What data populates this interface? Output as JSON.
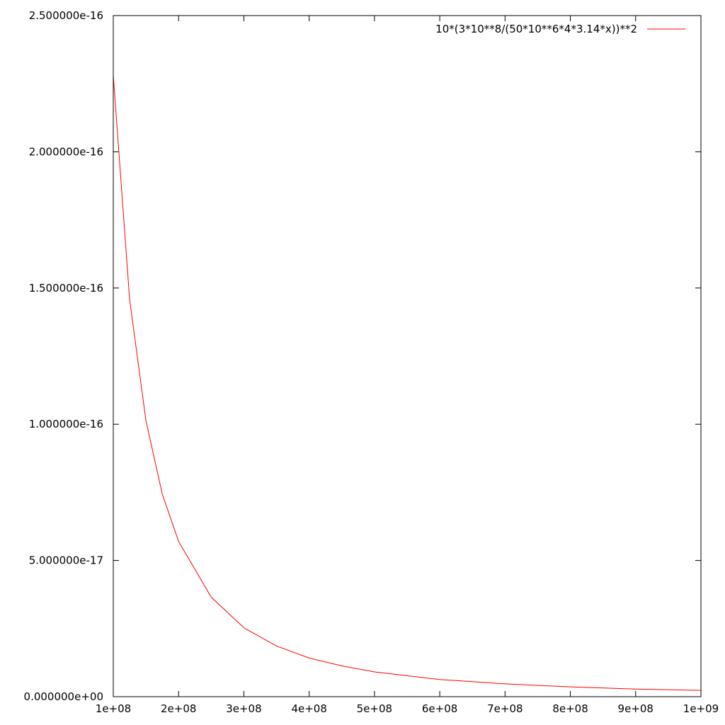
{
  "chart_data": {
    "type": "line",
    "title": "",
    "xlabel": "",
    "ylabel": "",
    "xlim": [
      100000000,
      1000000000
    ],
    "ylim": [
      0,
      2.5e-16
    ],
    "grid": false,
    "legend_position": "top-right",
    "x_ticks": [
      {
        "value": 100000000,
        "label": "1e+08"
      },
      {
        "value": 200000000,
        "label": "2e+08"
      },
      {
        "value": 300000000,
        "label": "3e+08"
      },
      {
        "value": 400000000,
        "label": "4e+08"
      },
      {
        "value": 500000000,
        "label": "5e+08"
      },
      {
        "value": 600000000,
        "label": "6e+08"
      },
      {
        "value": 700000000,
        "label": "7e+08"
      },
      {
        "value": 800000000,
        "label": "8e+08"
      },
      {
        "value": 900000000,
        "label": "9e+08"
      },
      {
        "value": 1000000000,
        "label": "1e+09"
      }
    ],
    "y_ticks": [
      {
        "value": 0,
        "label": "0.000000e+00"
      },
      {
        "value": 5e-17,
        "label": "5.000000e-17"
      },
      {
        "value": 1e-16,
        "label": "1.000000e-16"
      },
      {
        "value": 1.5e-16,
        "label": "1.500000e-16"
      },
      {
        "value": 2e-16,
        "label": "2.000000e-16"
      },
      {
        "value": 2.5e-16,
        "label": "2.500000e-16"
      }
    ],
    "series": [
      {
        "name": "10*(3*10**8/(50*10**6*4*3.14*x))**2",
        "color": "#ff0000",
        "points": [
          [
            100000000,
            2.28e-16
          ],
          [
            125000000,
            1.459e-16
          ],
          [
            150000000,
            1.013e-16
          ],
          [
            175000000,
            7.44e-17
          ],
          [
            200000000,
            5.7e-17
          ],
          [
            250000000,
            3.65e-17
          ],
          [
            300000000,
            2.53e-17
          ],
          [
            350000000,
            1.86e-17
          ],
          [
            400000000,
            1.42e-17
          ],
          [
            450000000,
            1.13e-17
          ],
          [
            500000000,
            9.1e-18
          ],
          [
            600000000,
            6.3e-18
          ],
          [
            700000000,
            4.7e-18
          ],
          [
            800000000,
            3.6e-18
          ],
          [
            900000000,
            2.8e-18
          ],
          [
            1000000000,
            2.3e-18
          ]
        ]
      }
    ]
  }
}
